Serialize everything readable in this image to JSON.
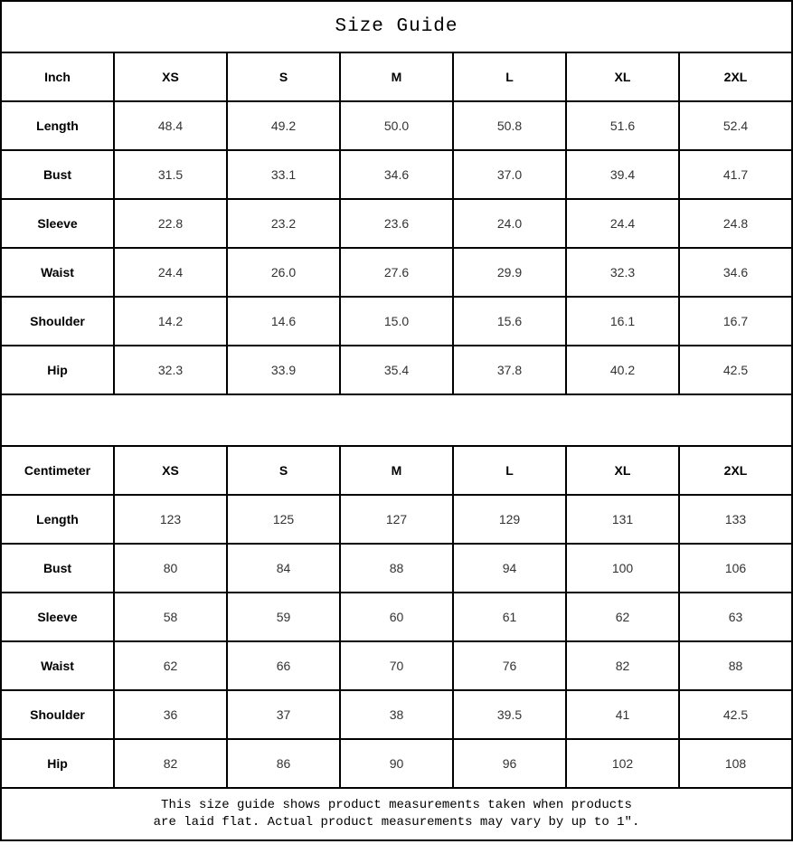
{
  "chart_data": {
    "type": "table",
    "title": "Size Guide",
    "tables": [
      {
        "unit": "Inch",
        "sizes": [
          "XS",
          "S",
          "M",
          "L",
          "XL",
          "2XL"
        ],
        "rows": [
          {
            "label": "Length",
            "values": [
              "48.4",
              "49.2",
              "50.0",
              "50.8",
              "51.6",
              "52.4"
            ]
          },
          {
            "label": "Bust",
            "values": [
              "31.5",
              "33.1",
              "34.6",
              "37.0",
              "39.4",
              "41.7"
            ]
          },
          {
            "label": "Sleeve",
            "values": [
              "22.8",
              "23.2",
              "23.6",
              "24.0",
              "24.4",
              "24.8"
            ]
          },
          {
            "label": "Waist",
            "values": [
              "24.4",
              "26.0",
              "27.6",
              "29.9",
              "32.3",
              "34.6"
            ]
          },
          {
            "label": "Shoulder",
            "values": [
              "14.2",
              "14.6",
              "15.0",
              "15.6",
              "16.1",
              "16.7"
            ]
          },
          {
            "label": "Hip",
            "values": [
              "32.3",
              "33.9",
              "35.4",
              "37.8",
              "40.2",
              "42.5"
            ]
          }
        ]
      },
      {
        "unit": "Centimeter",
        "sizes": [
          "XS",
          "S",
          "M",
          "L",
          "XL",
          "2XL"
        ],
        "rows": [
          {
            "label": "Length",
            "values": [
              "123",
              "125",
              "127",
              "129",
              "131",
              "133"
            ]
          },
          {
            "label": "Bust",
            "values": [
              "80",
              "84",
              "88",
              "94",
              "100",
              "106"
            ]
          },
          {
            "label": "Sleeve",
            "values": [
              "58",
              "59",
              "60",
              "61",
              "62",
              "63"
            ]
          },
          {
            "label": "Waist",
            "values": [
              "62",
              "66",
              "70",
              "76",
              "82",
              "88"
            ]
          },
          {
            "label": "Shoulder",
            "values": [
              "36",
              "37",
              "38",
              "39.5",
              "41",
              "42.5"
            ]
          },
          {
            "label": "Hip",
            "values": [
              "82",
              "86",
              "90",
              "96",
              "102",
              "108"
            ]
          }
        ]
      }
    ],
    "note_lines": [
      "This size guide shows product measurements taken when products",
      "are laid flat. Actual product measurements may vary by up to 1″."
    ],
    "colors": {
      "border": "#000000",
      "value_text": "#333333",
      "label_text": "#000000"
    }
  }
}
